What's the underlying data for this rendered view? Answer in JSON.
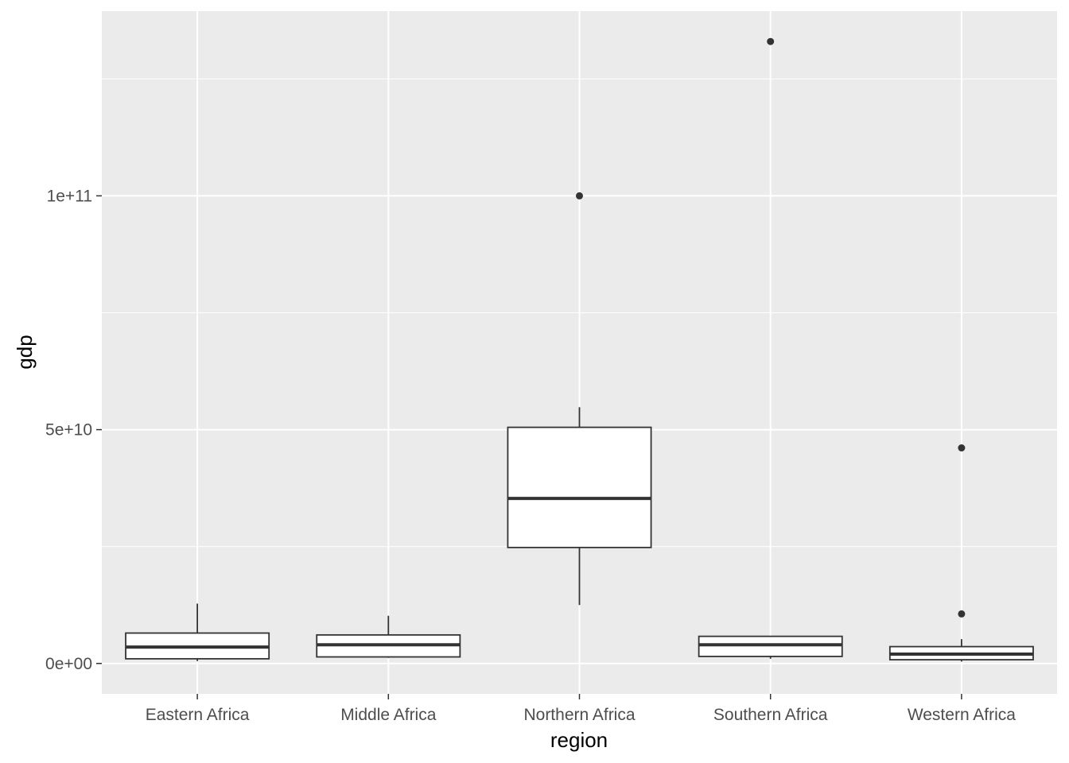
{
  "chart_data": {
    "type": "boxplot",
    "title": "",
    "xlabel": "region",
    "ylabel": "gdp",
    "categories": [
      "Eastern Africa",
      "Middle Africa",
      "Northern Africa",
      "Southern Africa",
      "Western Africa"
    ],
    "boxes": [
      {
        "category": "Eastern Africa",
        "whisker_low": 500000000,
        "q1": 1000000000,
        "median": 3500000000,
        "q3": 6500000000,
        "whisker_high": 12800000000,
        "outliers": []
      },
      {
        "category": "Middle Africa",
        "whisker_low": 1200000000,
        "q1": 1400000000,
        "median": 4000000000,
        "q3": 6100000000,
        "whisker_high": 10200000000,
        "outliers": []
      },
      {
        "category": "Northern Africa",
        "whisker_low": 12500000000,
        "q1": 24800000000,
        "median": 35300000000,
        "q3": 50500000000,
        "whisker_high": 54800000000,
        "outliers": [
          100000000000
        ]
      },
      {
        "category": "Southern Africa",
        "whisker_low": 1000000000,
        "q1": 1500000000,
        "median": 4000000000,
        "q3": 5800000000,
        "whisker_high": 5800000000,
        "outliers": [
          133000000000
        ]
      },
      {
        "category": "Western Africa",
        "whisker_low": 400000000,
        "q1": 800000000,
        "median": 2000000000,
        "q3": 3600000000,
        "whisker_high": 5200000000,
        "outliers": [
          10600000000,
          46100000000
        ]
      }
    ],
    "y_ticks": [
      {
        "value": 0,
        "label": "0e+00"
      },
      {
        "value": 50000000000,
        "label": "5e+10"
      },
      {
        "value": 100000000000,
        "label": "1e+11"
      }
    ],
    "ylim": [
      -6500000000,
      139500000000
    ],
    "grid": true,
    "colors": {
      "panel": "#ebebeb",
      "grid": "#ffffff",
      "box_fill": "#ffffff",
      "box_line": "#333333",
      "tick_mark": "#333333"
    }
  }
}
